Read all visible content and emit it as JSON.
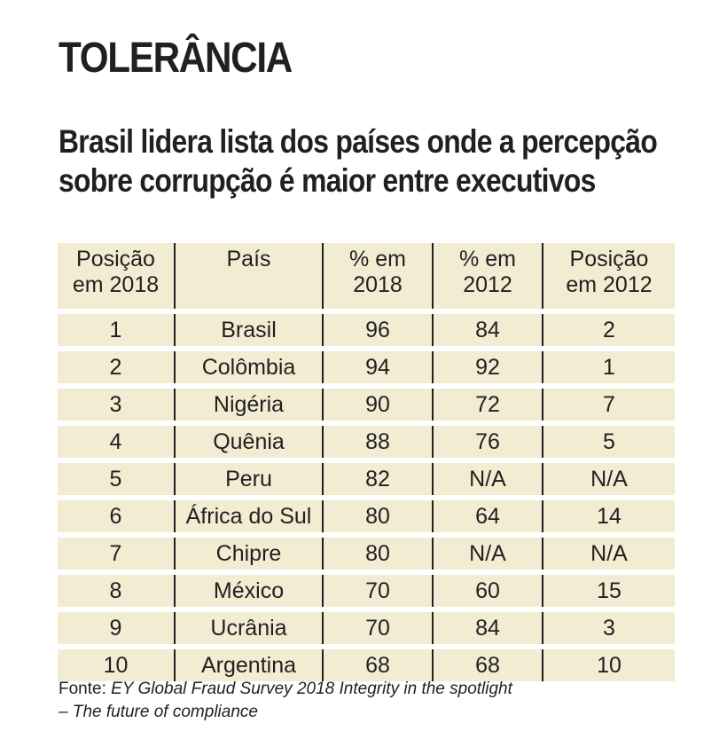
{
  "kicker": "TOLERÂNCIA",
  "headline": "Brasil lidera lista dos países onde a percepção sobre corrupção é maior entre executivos",
  "table": {
    "headers": [
      [
        "Posição",
        "em 2018"
      ],
      [
        "País",
        ""
      ],
      [
        "% em",
        "2018"
      ],
      [
        "% em",
        "2012"
      ],
      [
        "Posição",
        "em 2012"
      ]
    ],
    "rows": [
      [
        "1",
        "Brasil",
        "96",
        "84",
        "2"
      ],
      [
        "2",
        "Colômbia",
        "94",
        "92",
        "1"
      ],
      [
        "3",
        "Nigéria",
        "90",
        "72",
        "7"
      ],
      [
        "4",
        "Quênia",
        "88",
        "76",
        "5"
      ],
      [
        "5",
        "Peru",
        "82",
        "N/A",
        "N/A"
      ],
      [
        "6",
        "África do Sul",
        "80",
        "64",
        "14"
      ],
      [
        "7",
        "Chipre",
        "80",
        "N/A",
        "N/A"
      ],
      [
        "8",
        "México",
        "70",
        "60",
        "15"
      ],
      [
        "9",
        "Ucrânia",
        "70",
        "84",
        "3"
      ],
      [
        "10",
        "Argentina",
        "68",
        "68",
        "10"
      ]
    ]
  },
  "source": {
    "label": "Fonte: ",
    "text": "EY Global Fraud Survey 2018 Integrity in the spotlight",
    "text2": "– The future of compliance"
  }
}
